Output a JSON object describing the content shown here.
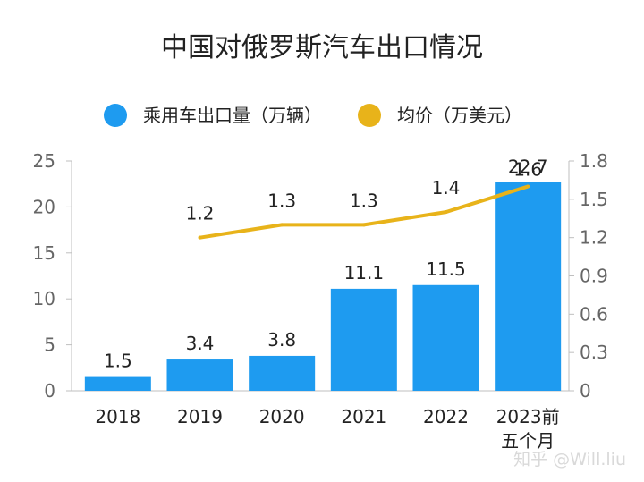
{
  "chart_data": {
    "type": "bar",
    "title": "中国对俄罗斯汽车出口情况",
    "categories": [
      "2018",
      "2019",
      "2020",
      "2021",
      "2022",
      "2023前\n五个月"
    ],
    "series": [
      {
        "name": "乘用车出口量（万辆）",
        "type": "bar",
        "axis": "left",
        "values": [
          1.5,
          3.4,
          3.8,
          11.1,
          11.5,
          22.7
        ]
      },
      {
        "name": "均价（万美元）",
        "type": "line",
        "axis": "right",
        "values": [
          null,
          1.2,
          1.3,
          1.3,
          1.4,
          1.6
        ]
      }
    ],
    "y_left": {
      "min": 0,
      "max": 25,
      "ticks": [
        0,
        5,
        10,
        15,
        20,
        25
      ]
    },
    "y_right": {
      "min": 0,
      "max": 1.8,
      "ticks": [
        "0",
        "0.3",
        "0.6",
        "0.9",
        "1.2",
        "1.5",
        "1.8"
      ]
    },
    "bar_labels": [
      "1.5",
      "3.4",
      "3.8",
      "11.1",
      "11.5",
      "22.7"
    ],
    "line_labels": [
      null,
      "1.2",
      "1.3",
      "1.3",
      "1.4",
      "1.6"
    ],
    "legend_position": "top",
    "colors": {
      "bar": "#1E9BF0",
      "line": "#E8B31A"
    },
    "grid": false
  },
  "watermark": "知乎 @Will.liu"
}
